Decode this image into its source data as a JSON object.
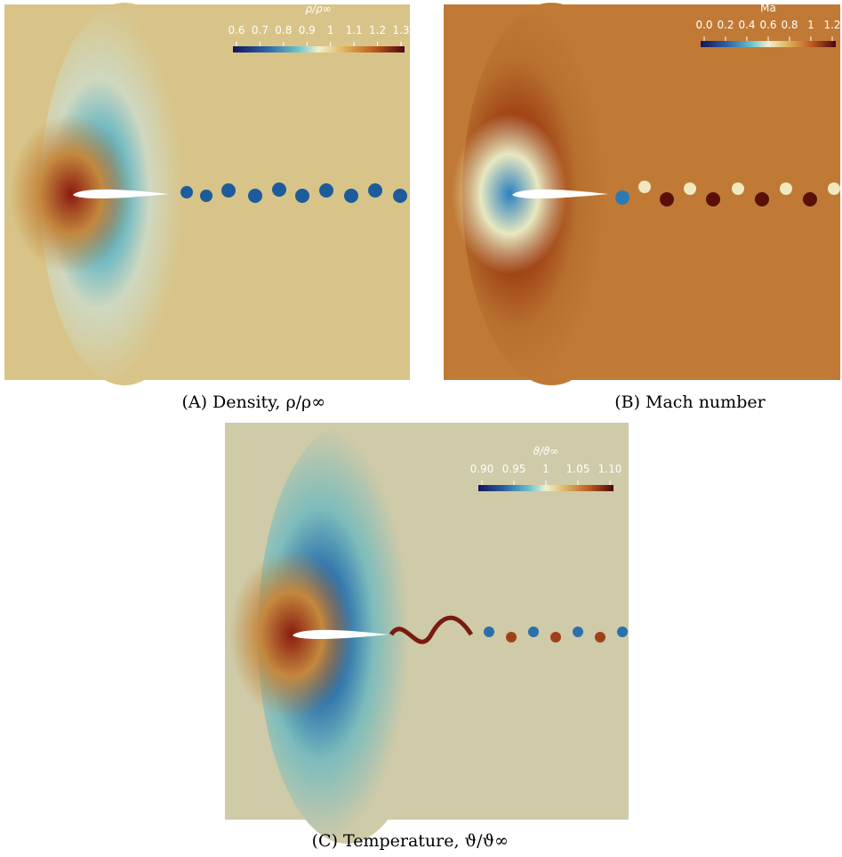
{
  "panels": [
    {
      "label": "(A)",
      "caption": "Density, ρ/ρ∞",
      "colorbar": {
        "title": "ρ/ρ∞",
        "ticks": [
          "0.6",
          "0.7",
          "0.8",
          "0.9",
          "1",
          "1.1",
          "1.2",
          "1.3"
        ]
      }
    },
    {
      "label": "(B)",
      "caption": "Mach number",
      "colorbar": {
        "title": "Ma",
        "ticks": [
          "0.0",
          "0.2",
          "0.4",
          "0.6",
          "0.8",
          "1",
          "1.2"
        ]
      }
    },
    {
      "label": "(C)",
      "caption": "Temperature, ϑ/ϑ∞",
      "colorbar": {
        "title": "ϑ/ϑ∞",
        "ticks": [
          "0.90",
          "0.95",
          "1",
          "1.05",
          "1.10"
        ]
      }
    }
  ]
}
